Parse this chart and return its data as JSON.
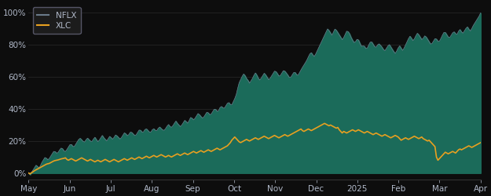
{
  "background_color": "#0d0d0d",
  "plot_bg_color": "#0d0d0d",
  "nflx_fill_color": "#1b6b5a",
  "nflx_line_color": "#6a7a8a",
  "xlc_color": "#e8a020",
  "legend_nflx_label": "NFLX",
  "legend_xlc_label": "XLC",
  "x_tick_labels": [
    "May",
    "Jun",
    "Jul",
    "Aug",
    "Sep",
    "Oct",
    "Nov",
    "Dec",
    "2025",
    "Feb",
    "Mar",
    "Apr"
  ],
  "y_tick_labels": [
    "0%",
    "20%",
    "40%",
    "60%",
    "80%",
    "100%"
  ],
  "ylim": [
    -4,
    106
  ],
  "text_color": "#b0b8c8",
  "legend_bg": "#1c1c1c",
  "legend_edge": "#555566",
  "nflx_data": [
    0.0,
    -1.0,
    0.5,
    2.0,
    3.5,
    5.0,
    4.0,
    3.0,
    5.0,
    7.0,
    8.5,
    10.0,
    9.0,
    8.0,
    9.5,
    11.0,
    12.5,
    14.0,
    13.0,
    12.0,
    13.5,
    15.0,
    16.0,
    14.5,
    13.0,
    14.0,
    15.5,
    17.0,
    18.5,
    17.0,
    16.0,
    17.5,
    19.0,
    20.5,
    22.0,
    21.0,
    20.0,
    19.0,
    20.5,
    22.0,
    21.0,
    20.0,
    19.5,
    21.0,
    22.5,
    21.0,
    19.5,
    20.5,
    22.0,
    23.5,
    22.0,
    21.0,
    20.0,
    21.5,
    23.0,
    22.0,
    21.0,
    22.5,
    24.0,
    23.0,
    22.0,
    21.0,
    22.5,
    24.0,
    25.5,
    24.0,
    23.0,
    24.5,
    26.0,
    25.0,
    24.0,
    23.0,
    24.5,
    26.0,
    27.5,
    26.0,
    25.0,
    26.5,
    28.0,
    27.0,
    26.0,
    25.0,
    26.5,
    28.0,
    27.0,
    26.0,
    27.5,
    29.0,
    28.0,
    27.0,
    26.5,
    27.5,
    29.0,
    30.5,
    29.0,
    28.5,
    29.5,
    31.0,
    32.5,
    31.0,
    30.0,
    29.0,
    30.0,
    31.5,
    33.0,
    32.0,
    31.0,
    33.0,
    35.0,
    34.0,
    33.0,
    34.5,
    36.0,
    37.5,
    36.0,
    35.0,
    34.0,
    35.5,
    37.0,
    38.5,
    37.0,
    36.0,
    37.5,
    39.0,
    40.5,
    39.0,
    38.0,
    40.0,
    42.0,
    41.0,
    40.0,
    41.5,
    43.0,
    44.5,
    43.0,
    42.0,
    44.0,
    46.0,
    48.0,
    52.0,
    56.0,
    58.0,
    60.0,
    62.0,
    61.0,
    59.0,
    58.0,
    56.0,
    57.5,
    59.0,
    61.0,
    62.5,
    61.0,
    59.0,
    58.0,
    59.5,
    61.0,
    62.5,
    61.0,
    59.5,
    58.0,
    59.5,
    61.0,
    62.5,
    64.0,
    63.0,
    61.5,
    60.0,
    61.5,
    63.0,
    64.5,
    63.0,
    62.0,
    60.5,
    59.0,
    60.5,
    62.0,
    63.5,
    62.0,
    60.5,
    62.0,
    64.0,
    65.5,
    67.0,
    68.5,
    70.0,
    72.0,
    74.0,
    75.5,
    74.0,
    72.5,
    74.0,
    76.0,
    78.0,
    80.0,
    82.0,
    84.0,
    86.0,
    88.0,
    90.0,
    89.0,
    87.5,
    86.0,
    88.0,
    90.0,
    89.0,
    87.5,
    86.0,
    84.5,
    83.0,
    85.0,
    87.0,
    89.0,
    88.0,
    86.5,
    84.0,
    82.5,
    81.0,
    82.5,
    84.0,
    82.5,
    80.0,
    78.5,
    80.0,
    78.5,
    77.0,
    79.0,
    81.0,
    82.5,
    81.0,
    79.5,
    78.0,
    79.5,
    81.0,
    80.0,
    79.0,
    77.5,
    76.0,
    77.5,
    79.0,
    80.5,
    79.0,
    77.5,
    76.0,
    74.5,
    76.0,
    78.0,
    79.5,
    78.0,
    76.5,
    78.0,
    80.0,
    82.0,
    84.0,
    85.5,
    84.0,
    82.5,
    84.0,
    86.0,
    87.5,
    86.0,
    84.5,
    83.0,
    84.5,
    86.0,
    84.5,
    83.0,
    81.5,
    80.0,
    81.5,
    83.0,
    84.5,
    83.0,
    81.5,
    83.0,
    85.0,
    87.0,
    88.5,
    87.0,
    85.5,
    84.0,
    85.5,
    87.0,
    88.5,
    87.5,
    86.0,
    88.0,
    90.0,
    88.5,
    87.0,
    88.5,
    90.0,
    91.5,
    90.0,
    88.5,
    90.0,
    92.0,
    93.5,
    95.0,
    96.5,
    98.0,
    100.0
  ],
  "xlc_data": [
    0.0,
    -0.5,
    0.2,
    0.8,
    1.5,
    2.0,
    2.5,
    3.0,
    3.5,
    4.0,
    4.5,
    5.0,
    5.5,
    5.8,
    6.0,
    6.5,
    7.0,
    7.5,
    7.8,
    8.0,
    8.2,
    8.5,
    8.8,
    9.0,
    9.2,
    9.5,
    8.5,
    8.0,
    8.5,
    9.0,
    8.5,
    8.0,
    7.5,
    8.0,
    8.5,
    9.0,
    9.5,
    9.0,
    8.5,
    8.0,
    7.5,
    8.0,
    8.5,
    8.0,
    7.5,
    7.0,
    7.5,
    8.0,
    7.5,
    7.0,
    7.5,
    8.0,
    8.5,
    8.0,
    7.5,
    7.0,
    7.5,
    8.0,
    8.5,
    8.0,
    7.5,
    7.0,
    7.5,
    8.0,
    8.5,
    9.0,
    8.5,
    8.0,
    8.5,
    9.0,
    9.5,
    9.0,
    8.5,
    9.0,
    9.5,
    10.0,
    9.5,
    9.0,
    9.5,
    10.0,
    10.5,
    10.0,
    9.5,
    10.0,
    10.5,
    11.0,
    10.5,
    10.0,
    10.5,
    11.0,
    11.5,
    11.0,
    10.5,
    10.0,
    10.5,
    11.0,
    10.5,
    10.0,
    10.5,
    11.0,
    11.5,
    12.0,
    11.5,
    11.0,
    11.5,
    12.0,
    12.5,
    12.0,
    11.5,
    12.0,
    12.5,
    13.0,
    13.5,
    13.0,
    12.5,
    13.0,
    13.5,
    14.0,
    13.5,
    13.0,
    13.5,
    14.0,
    14.5,
    14.0,
    13.5,
    14.0,
    14.5,
    15.0,
    15.5,
    15.0,
    14.5,
    15.0,
    15.5,
    16.0,
    16.5,
    17.0,
    18.0,
    19.0,
    20.5,
    21.5,
    22.5,
    21.5,
    20.5,
    19.5,
    19.0,
    19.5,
    20.0,
    20.5,
    21.0,
    20.5,
    20.0,
    20.5,
    21.0,
    21.5,
    22.0,
    21.5,
    21.0,
    21.5,
    22.0,
    22.5,
    23.0,
    22.5,
    22.0,
    21.5,
    22.0,
    22.5,
    23.0,
    23.5,
    23.0,
    22.5,
    22.0,
    22.5,
    23.0,
    23.5,
    24.0,
    23.5,
    23.0,
    23.5,
    24.0,
    24.5,
    25.0,
    25.5,
    26.0,
    26.5,
    27.0,
    27.5,
    26.5,
    26.0,
    26.5,
    27.0,
    27.5,
    27.0,
    26.5,
    27.0,
    27.5,
    28.0,
    28.5,
    29.0,
    29.5,
    30.0,
    30.5,
    31.0,
    30.5,
    30.0,
    29.5,
    30.0,
    29.5,
    29.0,
    28.5,
    28.0,
    28.5,
    27.0,
    26.0,
    25.0,
    26.0,
    25.5,
    25.0,
    25.5,
    26.0,
    26.5,
    27.0,
    26.5,
    26.0,
    26.5,
    27.0,
    26.5,
    26.0,
    25.5,
    25.0,
    25.5,
    26.0,
    25.5,
    25.0,
    24.5,
    24.0,
    24.5,
    25.0,
    24.5,
    24.0,
    23.5,
    23.0,
    23.5,
    24.0,
    23.5,
    23.0,
    22.5,
    22.0,
    22.5,
    23.0,
    23.5,
    23.0,
    22.5,
    21.5,
    20.5,
    21.0,
    21.5,
    22.0,
    21.5,
    21.0,
    21.5,
    22.0,
    22.5,
    23.0,
    22.5,
    22.0,
    21.5,
    22.0,
    22.5,
    21.5,
    21.0,
    20.5,
    20.0,
    20.5,
    19.5,
    18.5,
    17.5,
    16.5,
    10.0,
    8.0,
    9.0,
    10.0,
    11.0,
    12.0,
    13.0,
    12.5,
    12.0,
    12.5,
    13.0,
    13.5,
    13.0,
    12.5,
    13.5,
    14.5,
    15.0,
    14.5,
    15.0,
    15.5,
    16.0,
    16.5,
    17.0,
    16.5,
    16.0,
    16.5,
    17.0,
    17.5,
    18.0,
    18.5,
    19.0
  ]
}
